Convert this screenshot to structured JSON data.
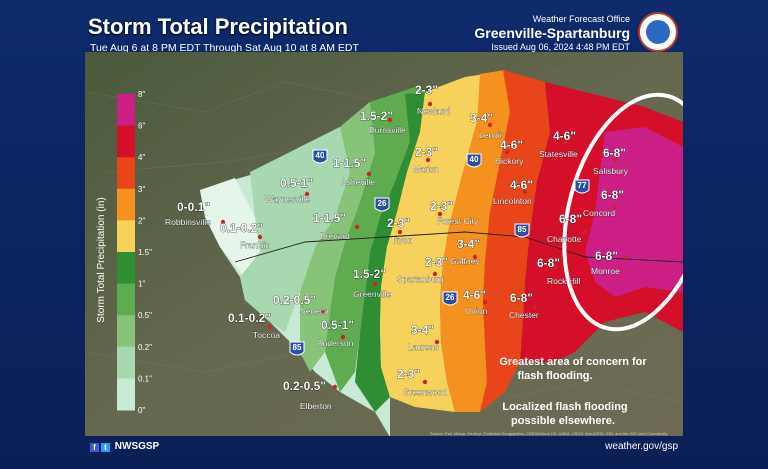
{
  "header": {
    "title": "Storm Total Precipitation",
    "subtitle": "Tue Aug 6 at 8 PM EDT Through Sat Aug 10 at 8 AM EDT",
    "office_line1": "Weather Forecast Office",
    "office_line2": "Greenville-Spartanburg",
    "issued": "Issued Aug 06, 2024 4:48 PM EDT"
  },
  "legend": {
    "title": "Storm Total Precipitation (in)",
    "ticks": [
      "8\"",
      "6\"",
      "4\"",
      "3\"",
      "2\"",
      "1.5\"",
      "1\"",
      "0.5\"",
      "0.2\"",
      "0.1\"",
      "0\""
    ],
    "colors": [
      "#cc1f86",
      "#d40f2a",
      "#e8461a",
      "#f5911f",
      "#f6d25c",
      "#2f8d34",
      "#5fab4f",
      "#87c47a",
      "#a8d8b0",
      "#c8ead5",
      "#e5f5ea"
    ]
  },
  "zones": [
    {
      "label": "0-0.1\"",
      "value_range": [
        0,
        0.1
      ]
    },
    {
      "label": "0.1-0.2\"",
      "value_range": [
        0.1,
        0.2
      ]
    },
    {
      "label": "0.2-0.5\"",
      "value_range": [
        0.2,
        0.5
      ]
    },
    {
      "label": "0.1-0.2\"",
      "value_range": [
        0.1,
        0.2
      ]
    },
    {
      "label": "0.5-1\"",
      "value_range": [
        0.5,
        1
      ]
    },
    {
      "label": "0.5-1\"",
      "value_range": [
        0.5,
        1
      ]
    },
    {
      "label": "0.2-0.5\"",
      "value_range": [
        0.2,
        0.5
      ]
    },
    {
      "label": "1-1.5\"",
      "value_range": [
        1,
        1.5
      ]
    },
    {
      "label": "1-1.5\"",
      "value_range": [
        1,
        1.5
      ]
    },
    {
      "label": "1.5-2\"",
      "value_range": [
        1.5,
        2
      ]
    },
    {
      "label": "1.5-2\"",
      "value_range": [
        1.5,
        2
      ]
    },
    {
      "label": "2-3\"",
      "value_range": [
        2,
        3
      ]
    },
    {
      "label": "2-3\"",
      "value_range": [
        2,
        3
      ]
    },
    {
      "label": "2-3\"",
      "value_range": [
        2,
        3
      ]
    },
    {
      "label": "2-3\"",
      "value_range": [
        2,
        3
      ]
    },
    {
      "label": "2-3\"",
      "value_range": [
        2,
        3
      ]
    },
    {
      "label": "2-3\"",
      "value_range": [
        2,
        3
      ]
    },
    {
      "label": "3-4\"",
      "value_range": [
        3,
        4
      ]
    },
    {
      "label": "3-4\"",
      "value_range": [
        3,
        4
      ]
    },
    {
      "label": "3-4\"",
      "value_range": [
        3,
        4
      ]
    },
    {
      "label": "4-6\"",
      "value_range": [
        4,
        6
      ]
    },
    {
      "label": "4-6\"",
      "value_range": [
        4,
        6
      ]
    },
    {
      "label": "4-6\"",
      "value_range": [
        4,
        6
      ]
    },
    {
      "label": "4-6\"",
      "value_range": [
        4,
        6
      ]
    },
    {
      "label": "6-8\"",
      "value_range": [
        6,
        8
      ]
    },
    {
      "label": "6-8\"",
      "value_range": [
        6,
        8
      ]
    },
    {
      "label": "6-8\"",
      "value_range": [
        6,
        8
      ]
    },
    {
      "label": "6-8\"",
      "value_range": [
        6,
        8
      ]
    },
    {
      "label": "6-8\"",
      "value_range": [
        6,
        8
      ]
    },
    {
      "label": "6-8\"",
      "value_range": [
        6,
        8
      ]
    }
  ],
  "cities": [
    "Robbinsville",
    "Franklin",
    "Waynesville",
    "Asheville",
    "Burnsville",
    "Newland",
    "Brevard",
    "Marion",
    "Lenoir",
    "Hickory",
    "Statesville",
    "Salisbury",
    "Forest City",
    "Lincolnton",
    "Tryon",
    "Concord",
    "Charlotte",
    "Gaffney",
    "Spartanburg",
    "Rock Hill",
    "Monroe",
    "Greenville",
    "Union",
    "Chester",
    "Seneca",
    "Toccoa",
    "Anderson",
    "Laurens",
    "Greenwood",
    "Elberton"
  ],
  "interstates": [
    "40",
    "40",
    "26",
    "26",
    "77",
    "85",
    "85"
  ],
  "notes": {
    "concern_line1": "Greatest area of concern for",
    "concern_line2": "flash flooding.",
    "local_line1": "Localized flash flooding",
    "local_line2": "possible elsewhere."
  },
  "footer": {
    "social": "NWSGSP",
    "url": "weather.gov/gsp",
    "source": "Source: Esri, Maxar, GeoEye, Earthstar Geographics, CNES/Airbus DS, USDA, USGS, AeroGRID, IGN, and the GIS User Community"
  },
  "colors": {
    "background": "#0a1f55",
    "highlight_circle": "#ffffff"
  }
}
